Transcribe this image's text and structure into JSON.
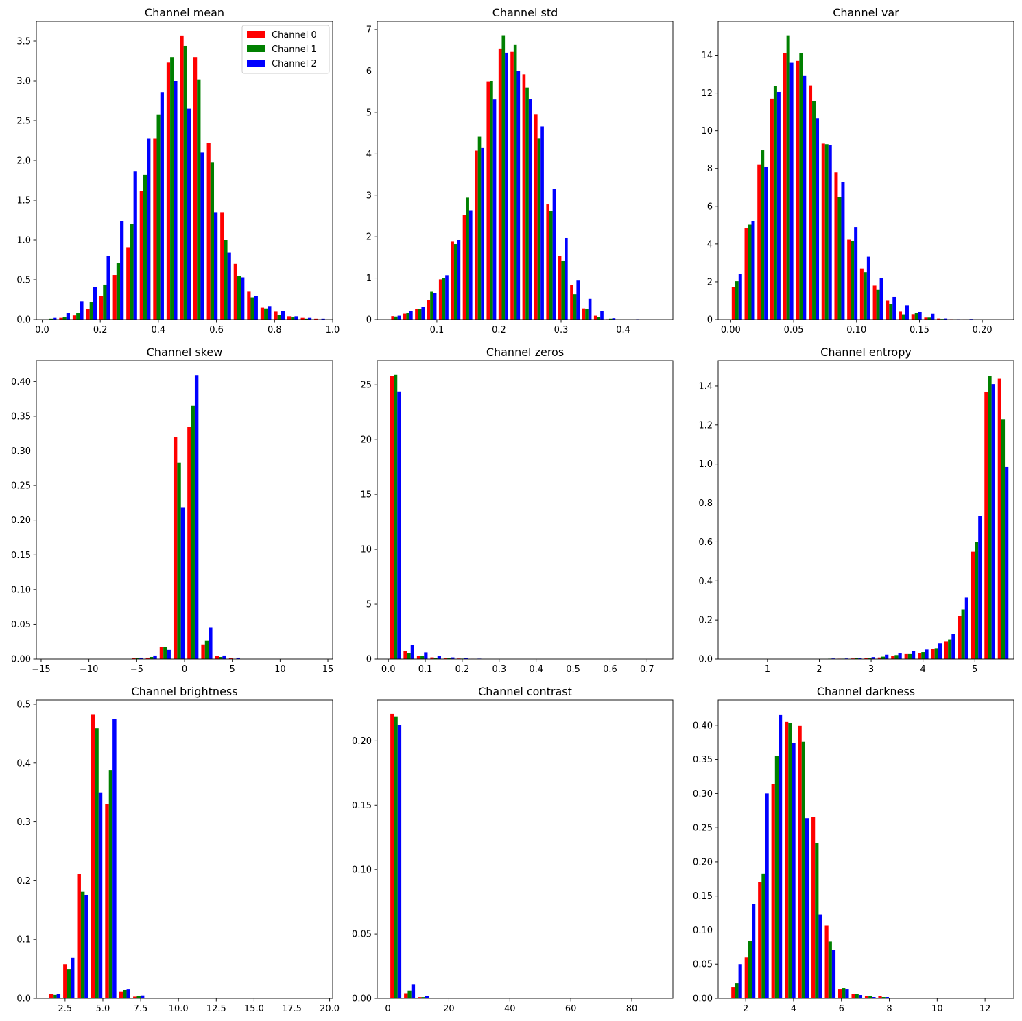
{
  "legend": [
    {
      "label": "Channel 0",
      "color": "#ff0000"
    },
    {
      "label": "Channel 1",
      "color": "#008000"
    },
    {
      "label": "Channel 2",
      "color": "#0000ff"
    }
  ],
  "chart_data": [
    {
      "type": "bar",
      "title": "Channel mean",
      "legend": "top-right",
      "xlim": [
        -0.02,
        1.0
      ],
      "ylim": [
        0,
        3.75
      ],
      "xticks": [
        0.0,
        0.2,
        0.4,
        0.6,
        0.8,
        1.0
      ],
      "xtick_labels": [
        "0.0",
        "0.2",
        "0.4",
        "0.6",
        "0.8",
        "1.0"
      ],
      "yticks": [
        0.0,
        0.5,
        1.0,
        1.5,
        2.0,
        2.5,
        3.0,
        3.5
      ],
      "ytick_labels": [
        "0.0",
        "0.5",
        "1.0",
        "1.5",
        "2.0",
        "2.5",
        "3.0",
        "3.5"
      ],
      "bin_start": 0.0125,
      "bin_width": 0.0462,
      "series": [
        {
          "name": "Channel 0",
          "values": [
            0.0,
            0.02,
            0.05,
            0.13,
            0.3,
            0.56,
            0.91,
            1.62,
            2.28,
            3.23,
            3.57,
            3.3,
            2.22,
            1.35,
            0.7,
            0.35,
            0.15,
            0.1,
            0.04,
            0.02,
            0.01
          ]
        },
        {
          "name": "Channel 1",
          "values": [
            0.01,
            0.03,
            0.08,
            0.22,
            0.44,
            0.71,
            1.2,
            1.82,
            2.58,
            3.3,
            3.44,
            3.02,
            1.98,
            1.0,
            0.55,
            0.28,
            0.14,
            0.06,
            0.03,
            0.01,
            0.0
          ]
        },
        {
          "name": "Channel 2",
          "values": [
            0.02,
            0.08,
            0.23,
            0.41,
            0.8,
            1.24,
            1.86,
            2.28,
            2.86,
            3.0,
            2.65,
            2.1,
            1.35,
            0.84,
            0.53,
            0.3,
            0.17,
            0.11,
            0.04,
            0.02,
            0.01
          ]
        }
      ]
    },
    {
      "type": "bar",
      "title": "Channel std",
      "xlim": [
        0.004,
        0.48
      ],
      "ylim": [
        0,
        7.2
      ],
      "xticks": [
        0.1,
        0.2,
        0.3,
        0.4
      ],
      "xtick_labels": [
        "0.1",
        "0.2",
        "0.3",
        "0.4"
      ],
      "yticks": [
        0,
        1,
        2,
        3,
        4,
        5,
        6,
        7
      ],
      "ytick_labels": [
        "0",
        "1",
        "2",
        "3",
        "4",
        "5",
        "6",
        "7"
      ],
      "bin_start": 0.0265,
      "bin_width": 0.0192,
      "series": [
        {
          "name": "Channel 0",
          "values": [
            0.08,
            0.14,
            0.25,
            0.47,
            0.97,
            1.88,
            2.53,
            4.08,
            5.75,
            6.54,
            6.46,
            5.92,
            4.96,
            2.78,
            1.53,
            0.83,
            0.27,
            0.09,
            0.01,
            0.0,
            0.0,
            0.0
          ]
        },
        {
          "name": "Channel 1",
          "values": [
            0.07,
            0.15,
            0.26,
            0.67,
            1.0,
            1.82,
            2.94,
            4.41,
            5.76,
            6.86,
            6.64,
            5.6,
            4.38,
            2.63,
            1.42,
            0.61,
            0.26,
            0.05,
            0.02,
            0.0,
            0.0,
            0.0
          ]
        },
        {
          "name": "Channel 2",
          "values": [
            0.09,
            0.2,
            0.31,
            0.63,
            1.07,
            1.92,
            2.64,
            4.14,
            5.31,
            6.44,
            6.0,
            5.32,
            4.66,
            3.15,
            1.97,
            0.94,
            0.5,
            0.2,
            0.03,
            0.0,
            0.01,
            0.0
          ]
        }
      ]
    },
    {
      "type": "bar",
      "title": "Channel var",
      "xlim": [
        -0.01,
        0.225
      ],
      "ylim": [
        0,
        15.8
      ],
      "xticks": [
        0.0,
        0.05,
        0.1,
        0.15,
        0.2
      ],
      "xtick_labels": [
        "0.00",
        "0.05",
        "0.10",
        "0.15",
        "0.20"
      ],
      "yticks": [
        0,
        2,
        4,
        6,
        8,
        10,
        12,
        14
      ],
      "ytick_labels": [
        "0",
        "2",
        "4",
        "6",
        "8",
        "10",
        "12",
        "14"
      ],
      "bin_start": 0.0008,
      "bin_width": 0.0102,
      "series": [
        {
          "name": "Channel 0",
          "values": [
            1.74,
            4.83,
            8.22,
            11.7,
            14.1,
            13.7,
            12.4,
            9.32,
            7.8,
            4.23,
            2.7,
            1.8,
            1.0,
            0.42,
            0.28,
            0.1,
            0.05,
            0.02,
            0.01,
            0.0,
            0.0
          ]
        },
        {
          "name": "Channel 1",
          "values": [
            2.03,
            5.03,
            8.97,
            12.35,
            15.05,
            14.1,
            11.56,
            9.29,
            6.5,
            4.17,
            2.5,
            1.57,
            0.8,
            0.27,
            0.34,
            0.1,
            0.03,
            0.01,
            0.01,
            0.0,
            0.0
          ]
        },
        {
          "name": "Channel 2",
          "values": [
            2.43,
            5.2,
            8.1,
            12.06,
            13.6,
            12.9,
            10.67,
            9.24,
            7.3,
            4.9,
            3.32,
            2.2,
            1.2,
            0.75,
            0.4,
            0.3,
            0.05,
            0.02,
            0.03,
            0.0,
            0.0
          ]
        }
      ]
    },
    {
      "type": "bar",
      "title": "Channel skew",
      "xlim": [
        -15.5,
        15.5
      ],
      "ylim": [
        0,
        0.43
      ],
      "xticks": [
        -15,
        -10,
        -5,
        0,
        5,
        10,
        15
      ],
      "xtick_labels": [
        "−15",
        "−10",
        "−5",
        "0",
        "5",
        "10",
        "15"
      ],
      "yticks": [
        0.0,
        0.05,
        0.1,
        0.15,
        0.2,
        0.25,
        0.3,
        0.35,
        0.4
      ],
      "ytick_labels": [
        "0.00",
        "0.05",
        "0.10",
        "0.15",
        "0.20",
        "0.25",
        "0.30",
        "0.35",
        "0.40"
      ],
      "bin_start": -14.2,
      "bin_width": 1.45,
      "series": [
        {
          "name": "Channel 0",
          "values": [
            0,
            0,
            0,
            0,
            0,
            0,
            0.001,
            0.002,
            0.017,
            0.32,
            0.335,
            0.021,
            0.004,
            0.001,
            0,
            0,
            0,
            0,
            0,
            0
          ]
        },
        {
          "name": "Channel 1",
          "values": [
            0,
            0,
            0,
            0,
            0,
            0,
            0.001,
            0.003,
            0.017,
            0.283,
            0.365,
            0.026,
            0.003,
            0.0,
            0,
            0,
            0,
            0,
            0,
            0
          ]
        },
        {
          "name": "Channel 2",
          "values": [
            0,
            0,
            0,
            0,
            0,
            0,
            0.002,
            0.005,
            0.013,
            0.218,
            0.409,
            0.045,
            0.005,
            0.002,
            0,
            0,
            0,
            0,
            0,
            0
          ]
        }
      ]
    },
    {
      "type": "bar",
      "title": "Channel zeros",
      "xlim": [
        -0.03,
        0.77
      ],
      "ylim": [
        0,
        27.2
      ],
      "xticks": [
        0.0,
        0.1,
        0.2,
        0.3,
        0.4,
        0.5,
        0.6,
        0.7
      ],
      "xtick_labels": [
        "0.0",
        "0.1",
        "0.2",
        "0.3",
        "0.4",
        "0.5",
        "0.6",
        "0.7"
      ],
      "yticks": [
        0,
        5,
        10,
        15,
        20,
        25
      ],
      "ytick_labels": [
        "0",
        "5",
        "10",
        "15",
        "20",
        "25"
      ],
      "bin_start": 0.005,
      "bin_width": 0.0362,
      "series": [
        {
          "name": "Channel 0",
          "values": [
            25.8,
            0.7,
            0.25,
            0.15,
            0.1,
            0.05,
            0.02,
            0,
            0,
            0,
            0,
            0,
            0,
            0,
            0,
            0,
            0,
            0,
            0,
            0
          ]
        },
        {
          "name": "Channel 1",
          "values": [
            25.9,
            0.55,
            0.3,
            0.12,
            0.08,
            0.04,
            0.01,
            0,
            0,
            0,
            0,
            0,
            0,
            0,
            0,
            0,
            0,
            0,
            0,
            0
          ]
        },
        {
          "name": "Channel 2",
          "values": [
            24.4,
            1.3,
            0.6,
            0.25,
            0.15,
            0.08,
            0.04,
            0,
            0,
            0,
            0,
            0,
            0,
            0,
            0,
            0,
            0,
            0,
            0,
            0
          ]
        }
      ]
    },
    {
      "type": "bar",
      "title": "Channel entropy",
      "xlim": [
        0.05,
        5.75
      ],
      "ylim": [
        0,
        1.53
      ],
      "xticks": [
        1,
        2,
        3,
        4,
        5
      ],
      "xtick_labels": [
        "1",
        "2",
        "3",
        "4",
        "5"
      ],
      "yticks": [
        0.0,
        0.2,
        0.4,
        0.6,
        0.8,
        1.0,
        1.2,
        1.4
      ],
      "ytick_labels": [
        "0.0",
        "0.2",
        "0.4",
        "0.6",
        "0.8",
        "1.0",
        "1.2",
        "1.4"
      ],
      "bin_start": 0.3,
      "bin_width": 0.2571,
      "series": [
        {
          "name": "Channel 0",
          "values": [
            0,
            0,
            0,
            0,
            0,
            0,
            0,
            0.0,
            0.002,
            0.003,
            0.005,
            0.008,
            0.015,
            0.025,
            0.03,
            0.05,
            0.09,
            0.22,
            0.55,
            1.37,
            1.44
          ]
        },
        {
          "name": "Channel 1",
          "values": [
            0,
            0,
            0,
            0,
            0,
            0,
            0,
            0.002,
            0.002,
            0.004,
            0.006,
            0.012,
            0.02,
            0.025,
            0.035,
            0.055,
            0.1,
            0.255,
            0.6,
            1.45,
            1.23
          ]
        },
        {
          "name": "Channel 2",
          "values": [
            0,
            0,
            0,
            0,
            0,
            0,
            0,
            0.003,
            0.003,
            0.005,
            0.01,
            0.022,
            0.028,
            0.04,
            0.048,
            0.08,
            0.13,
            0.315,
            0.735,
            1.41,
            0.985
          ]
        }
      ]
    },
    {
      "type": "bar",
      "title": "Channel brightness",
      "xlim": [
        0.6,
        20.2
      ],
      "ylim": [
        0,
        0.507
      ],
      "xticks": [
        2.5,
        5.0,
        7.5,
        10.0,
        12.5,
        15.0,
        17.5,
        20.0
      ],
      "xtick_labels": [
        "2.5",
        "5.0",
        "7.5",
        "10.0",
        "12.5",
        "15.0",
        "17.5",
        "20.0"
      ],
      "yticks": [
        0.0,
        0.1,
        0.2,
        0.3,
        0.4,
        0.5
      ],
      "ytick_labels": [
        "0.0",
        "0.1",
        "0.2",
        "0.3",
        "0.4",
        "0.5"
      ],
      "bin_start": 1.45,
      "bin_width": 0.925,
      "series": [
        {
          "name": "Channel 0",
          "values": [
            0.008,
            0.058,
            0.211,
            0.482,
            0.33,
            0.012,
            0.003,
            0.001,
            0.0,
            0,
            0,
            0,
            0,
            0,
            0,
            0,
            0,
            0,
            0,
            0
          ]
        },
        {
          "name": "Channel 1",
          "values": [
            0.006,
            0.05,
            0.181,
            0.459,
            0.388,
            0.014,
            0.004,
            0.001,
            0.0,
            0.0,
            0,
            0,
            0,
            0,
            0,
            0,
            0,
            0,
            0,
            0
          ]
        },
        {
          "name": "Channel 2",
          "values": [
            0.008,
            0.069,
            0.176,
            0.35,
            0.475,
            0.015,
            0.005,
            0.001,
            0.001,
            0.001,
            0,
            0,
            0,
            0,
            0,
            0,
            0,
            0,
            0,
            0
          ]
        }
      ]
    },
    {
      "type": "bar",
      "title": "Channel contrast",
      "xlim": [
        -3.5,
        93.5
      ],
      "ylim": [
        0,
        0.2316
      ],
      "xticks": [
        0,
        20,
        40,
        60,
        80
      ],
      "xtick_labels": [
        "0",
        "20",
        "40",
        "60",
        "80"
      ],
      "yticks": [
        0.0,
        0.05,
        0.1,
        0.15,
        0.2
      ],
      "ytick_labels": [
        "0.00",
        "0.05",
        "0.10",
        "0.15",
        "0.20"
      ],
      "bin_start": 0.8,
      "bin_width": 4.5,
      "series": [
        {
          "name": "Channel 0",
          "values": [
            0.221,
            0.004,
            0.001,
            0.0005,
            0,
            0,
            0,
            0,
            0,
            0,
            0,
            0,
            0,
            0,
            0,
            0,
            0,
            0,
            0,
            0
          ]
        },
        {
          "name": "Channel 1",
          "values": [
            0.219,
            0.006,
            0.001,
            0.0003,
            0,
            0,
            0,
            0,
            0,
            0,
            0,
            0,
            0,
            0,
            0,
            0,
            0,
            0,
            0,
            0
          ]
        },
        {
          "name": "Channel 2",
          "values": [
            0.212,
            0.011,
            0.002,
            0.0005,
            0,
            0,
            0,
            0,
            0,
            0,
            0,
            0,
            0,
            0,
            0,
            0,
            0,
            0,
            0,
            0
          ]
        }
      ]
    },
    {
      "type": "bar",
      "title": "Channel darkness",
      "xlim": [
        0.85,
        13.2
      ],
      "ylim": [
        0,
        0.437
      ],
      "xticks": [
        2,
        4,
        6,
        8,
        10,
        12
      ],
      "xtick_labels": [
        "2",
        "4",
        "6",
        "8",
        "10",
        "12"
      ],
      "yticks": [
        0.0,
        0.05,
        0.1,
        0.15,
        0.2,
        0.25,
        0.3,
        0.35,
        0.4
      ],
      "ytick_labels": [
        "0.00",
        "0.05",
        "0.10",
        "0.15",
        "0.20",
        "0.25",
        "0.30",
        "0.35",
        "0.40"
      ],
      "bin_start": 1.4,
      "bin_width": 0.558,
      "series": [
        {
          "name": "Channel 0",
          "values": [
            0.016,
            0.06,
            0.17,
            0.314,
            0.405,
            0.399,
            0.266,
            0.107,
            0.013,
            0.007,
            0.003,
            0.003,
            0.001,
            0,
            0,
            0,
            0,
            0,
            0,
            0
          ]
        },
        {
          "name": "Channel 1",
          "values": [
            0.022,
            0.084,
            0.183,
            0.355,
            0.403,
            0.376,
            0.228,
            0.083,
            0.015,
            0.007,
            0.003,
            0.002,
            0.001,
            0,
            0,
            0,
            0,
            0,
            0,
            0
          ]
        },
        {
          "name": "Channel 2",
          "values": [
            0.05,
            0.138,
            0.3,
            0.415,
            0.374,
            0.264,
            0.123,
            0.071,
            0.013,
            0.005,
            0.002,
            0.002,
            0.001,
            0,
            0,
            0,
            0,
            0,
            0,
            0
          ]
        }
      ]
    }
  ]
}
